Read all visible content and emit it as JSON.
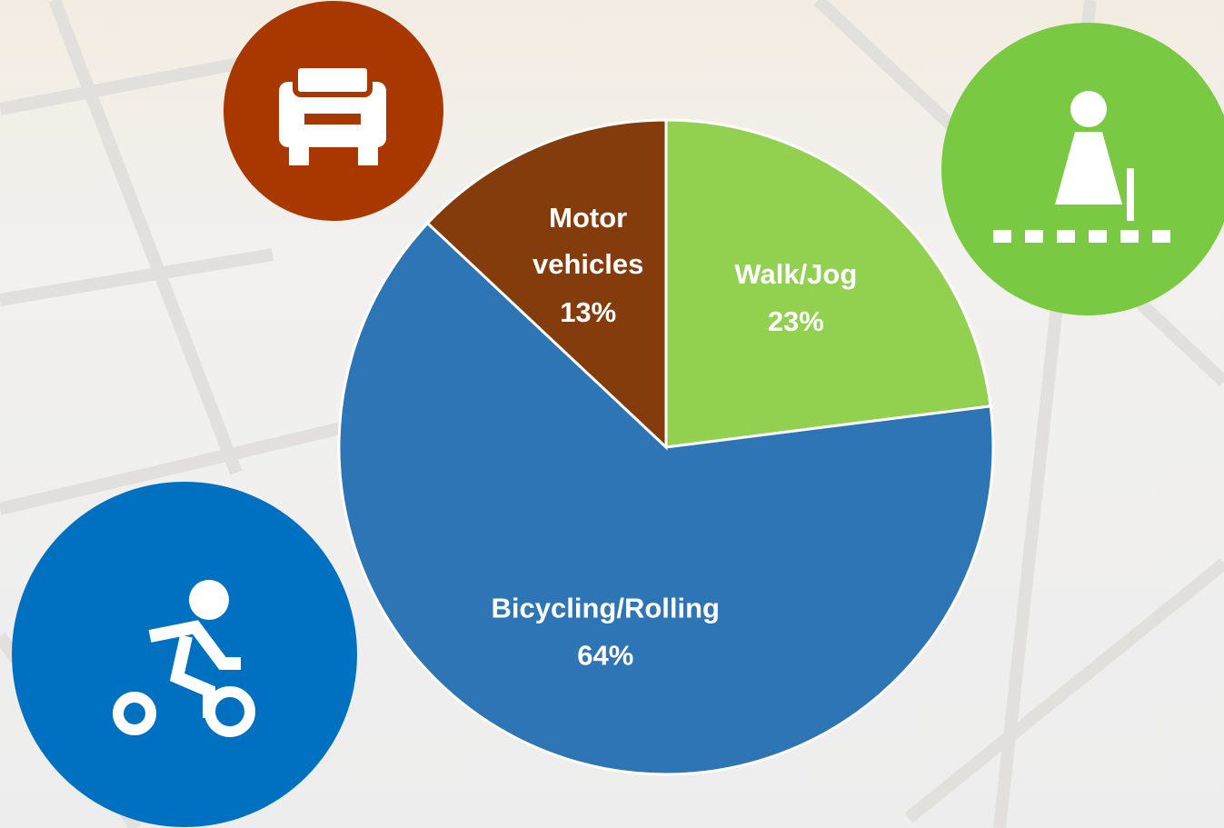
{
  "chart_data": {
    "type": "pie",
    "categories": [
      "Walk/Jog",
      "Bicycling/Rolling",
      "Motor vehicles"
    ],
    "values": [
      23,
      64,
      13
    ],
    "value_labels": [
      "23%",
      "64%",
      "13%"
    ],
    "colors": [
      "#92d050",
      "#2e75b6",
      "#843c0c"
    ]
  }
}
